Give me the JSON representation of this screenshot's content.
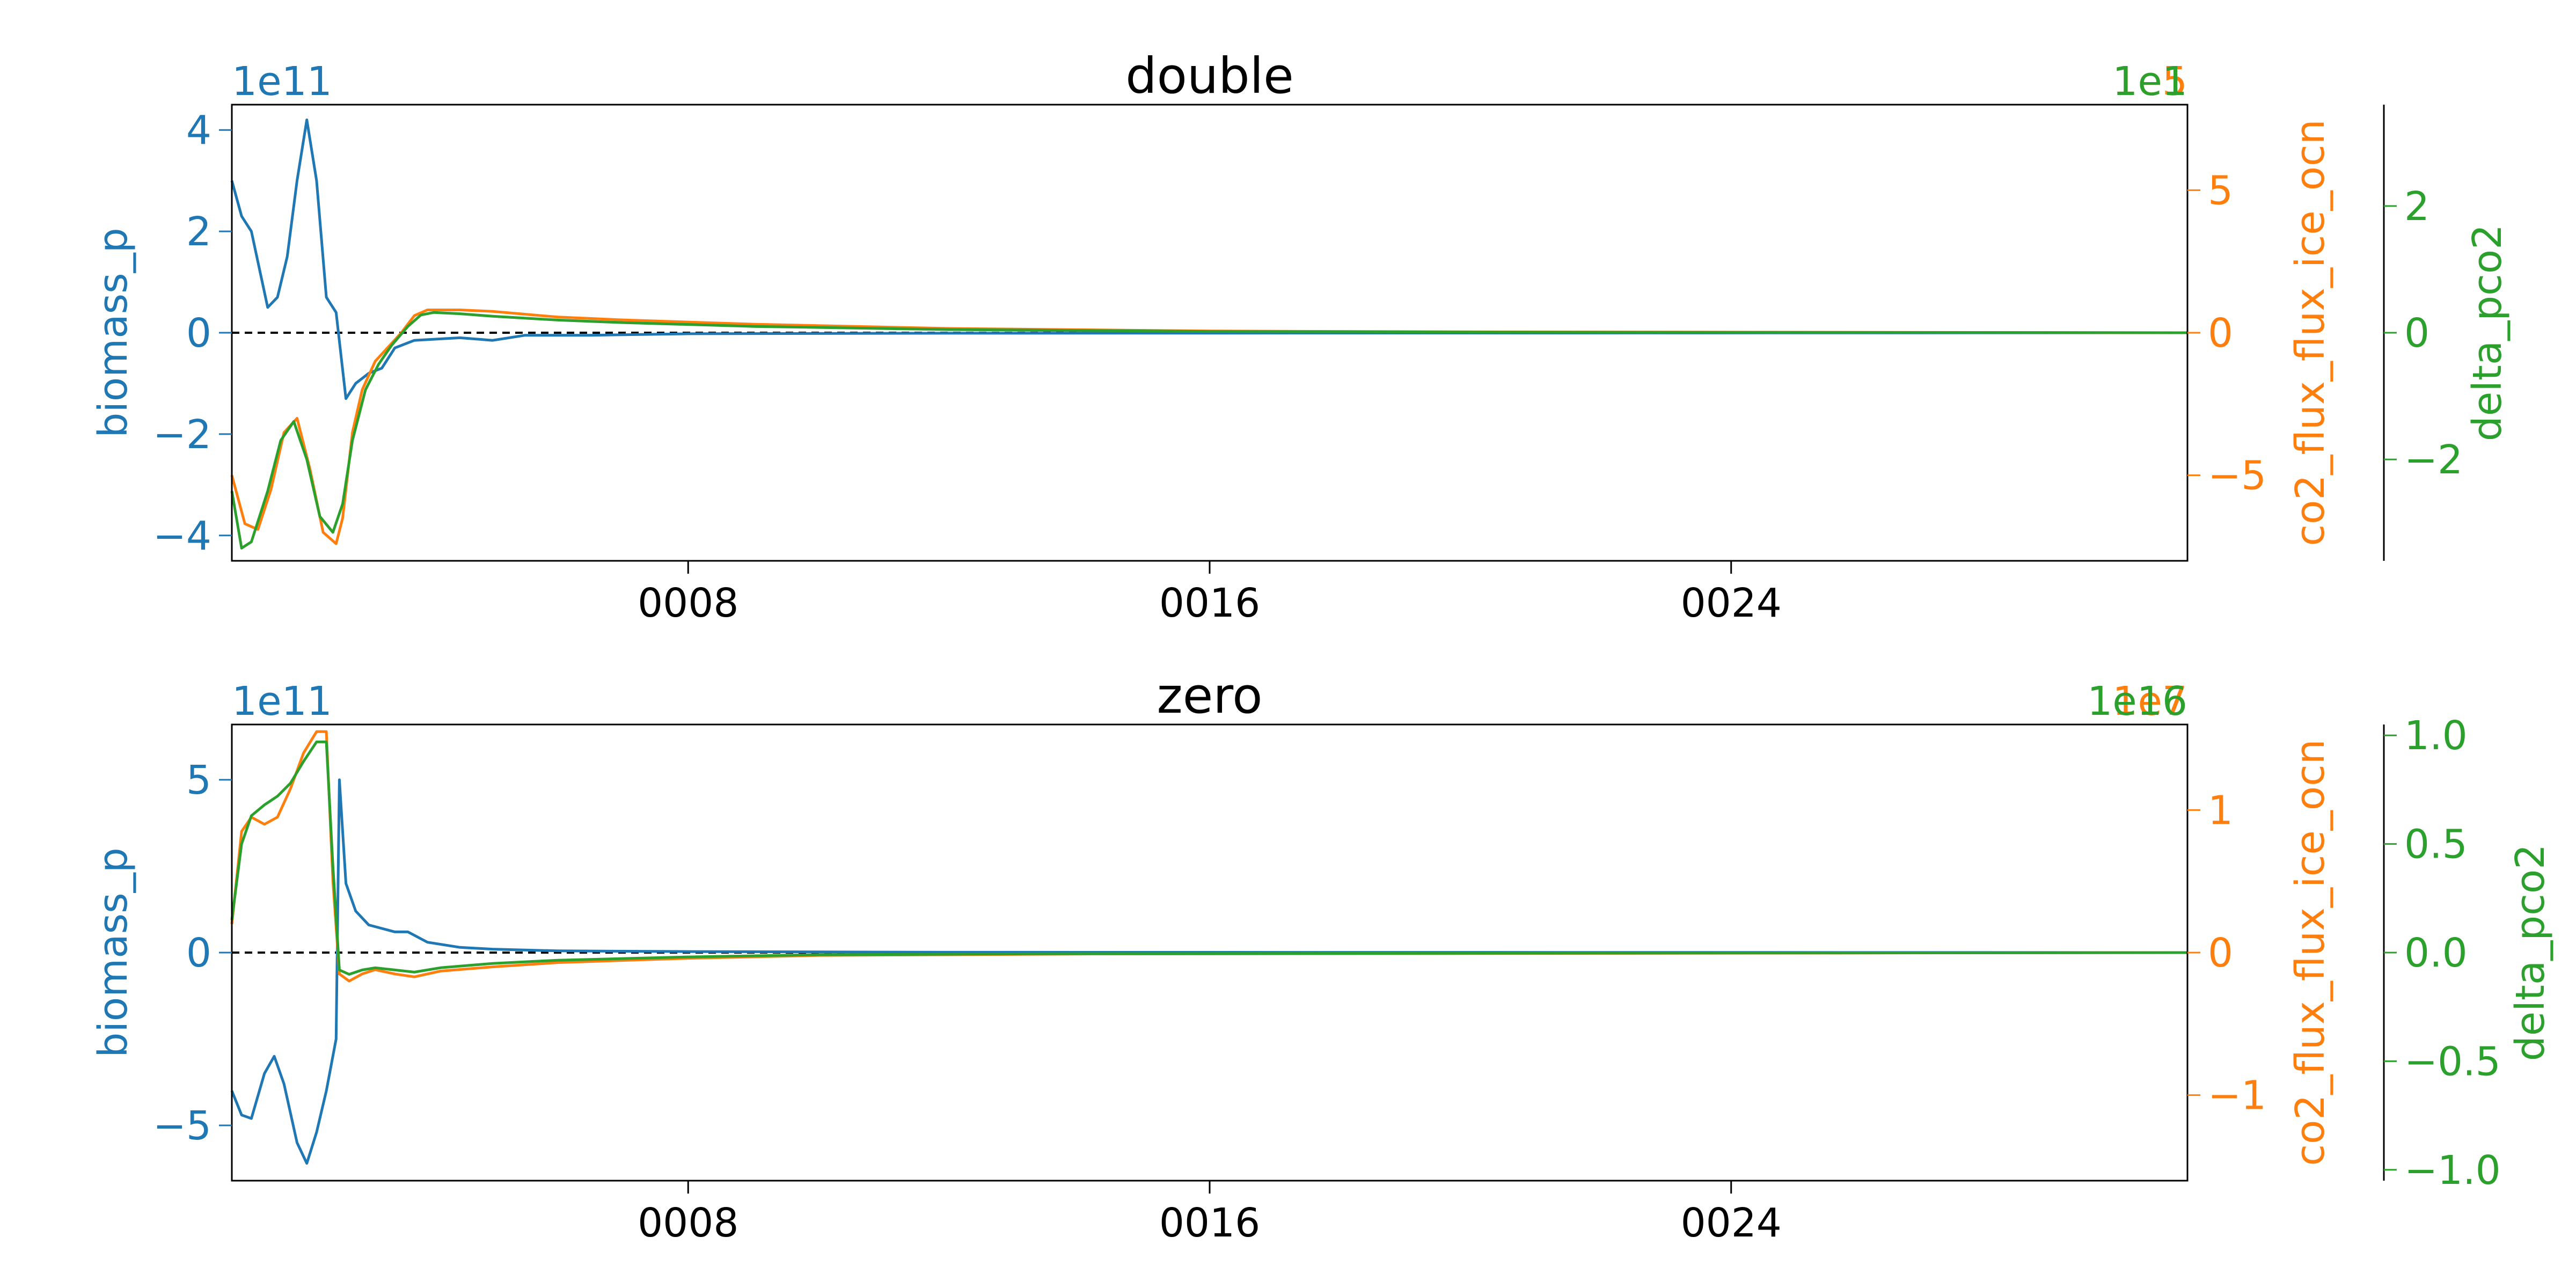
{
  "chart_data": [
    {
      "type": "line",
      "title": "double",
      "xlabel": "",
      "x_tick_labels": [
        "0008",
        "0016",
        "0024"
      ],
      "x_ticks": [
        8,
        16,
        24
      ],
      "xlim": [
        1,
        31
      ],
      "zero_line": true,
      "axes": {
        "left": {
          "label": "biomass_p",
          "offset_text": "1e11",
          "color": "#1f77b4",
          "ylim": [
            -4.5,
            4.5
          ],
          "ticks": [
            -4,
            -2,
            0,
            2,
            4
          ],
          "tick_labels": [
            "−4",
            "−2",
            "0",
            "2",
            "4"
          ]
        },
        "right": {
          "label": "co2_flux_flux_ice_ocn",
          "offset_text": "1e5",
          "color": "#ff7f0e",
          "ylim": [
            -8,
            8
          ],
          "ticks": [
            -5,
            0,
            5
          ],
          "tick_labels": [
            "−5",
            "0",
            "5"
          ]
        },
        "right2": {
          "label": "delta_pco2",
          "offset_text": "1e1",
          "color": "#2ca02c",
          "ylim": [
            -3.6,
            3.6
          ],
          "ticks": [
            -2,
            0,
            2
          ],
          "tick_labels": [
            "−2",
            "0",
            "2"
          ]
        }
      },
      "series": [
        {
          "axis": "left",
          "color": "#1f77b4",
          "points": [
            [
              1,
              3.0
            ],
            [
              1.15,
              2.3
            ],
            [
              1.3,
              2.0
            ],
            [
              1.55,
              0.5
            ],
            [
              1.7,
              0.7
            ],
            [
              1.85,
              1.5
            ],
            [
              2.0,
              3.0
            ],
            [
              2.15,
              4.2
            ],
            [
              2.3,
              3.0
            ],
            [
              2.45,
              0.7
            ],
            [
              2.6,
              0.4
            ],
            [
              2.75,
              -1.3
            ],
            [
              2.9,
              -1.0
            ],
            [
              3.1,
              -0.8
            ],
            [
              3.3,
              -0.7
            ],
            [
              3.5,
              -0.3
            ],
            [
              3.8,
              -0.15
            ],
            [
              4.5,
              -0.1
            ],
            [
              5.0,
              -0.15
            ],
            [
              5.5,
              -0.05
            ],
            [
              6.5,
              -0.05
            ],
            [
              8.0,
              -0.02
            ],
            [
              12.0,
              -0.01
            ],
            [
              31.0,
              0.0
            ]
          ]
        },
        {
          "axis": "right",
          "color": "#ff7f0e",
          "points": [
            [
              1,
              -5.0
            ],
            [
              1.2,
              -6.7
            ],
            [
              1.4,
              -6.9
            ],
            [
              1.6,
              -5.5
            ],
            [
              1.8,
              -3.5
            ],
            [
              2.0,
              -3.0
            ],
            [
              2.2,
              -4.8
            ],
            [
              2.4,
              -7.0
            ],
            [
              2.6,
              -7.4
            ],
            [
              2.7,
              -6.5
            ],
            [
              2.85,
              -3.5
            ],
            [
              3.0,
              -2.0
            ],
            [
              3.2,
              -1.0
            ],
            [
              3.4,
              -0.5
            ],
            [
              3.6,
              0.0
            ],
            [
              3.8,
              0.6
            ],
            [
              4.0,
              0.8
            ],
            [
              4.5,
              0.8
            ],
            [
              5.0,
              0.75
            ],
            [
              6.0,
              0.55
            ],
            [
              7.0,
              0.45
            ],
            [
              9.0,
              0.3
            ],
            [
              12.0,
              0.15
            ],
            [
              16.0,
              0.06
            ],
            [
              20.0,
              0.03
            ],
            [
              31.0,
              0.0
            ]
          ]
        },
        {
          "axis": "right2",
          "color": "#2ca02c",
          "points": [
            [
              1,
              -2.5
            ],
            [
              1.15,
              -3.4
            ],
            [
              1.3,
              -3.3
            ],
            [
              1.55,
              -2.5
            ],
            [
              1.75,
              -1.7
            ],
            [
              1.95,
              -1.4
            ],
            [
              2.15,
              -2.0
            ],
            [
              2.35,
              -2.9
            ],
            [
              2.55,
              -3.15
            ],
            [
              2.7,
              -2.7
            ],
            [
              2.85,
              -1.7
            ],
            [
              3.05,
              -0.9
            ],
            [
              3.25,
              -0.5
            ],
            [
              3.45,
              -0.2
            ],
            [
              3.7,
              0.1
            ],
            [
              3.9,
              0.28
            ],
            [
              4.1,
              0.32
            ],
            [
              4.5,
              0.3
            ],
            [
              5.0,
              0.26
            ],
            [
              6.0,
              0.2
            ],
            [
              7.0,
              0.16
            ],
            [
              9.0,
              0.1
            ],
            [
              12.0,
              0.05
            ],
            [
              16.0,
              0.02
            ],
            [
              20.0,
              0.01
            ],
            [
              31.0,
              0.0
            ]
          ]
        }
      ]
    },
    {
      "type": "line",
      "title": "zero",
      "xlabel": "",
      "x_tick_labels": [
        "0008",
        "0016",
        "0024"
      ],
      "x_ticks": [
        8,
        16,
        24
      ],
      "xlim": [
        1,
        31
      ],
      "zero_line": true,
      "axes": {
        "left": {
          "label": "biomass_p",
          "offset_text": "1e11",
          "color": "#1f77b4",
          "ylim": [
            -6.6,
            6.6
          ],
          "ticks": [
            -5,
            0,
            5
          ],
          "tick_labels": [
            "−5",
            "0",
            "5"
          ]
        },
        "right": {
          "label": "co2_flux_flux_ice_ocn",
          "offset_text": "1e7",
          "color": "#ff7f0e",
          "ylim": [
            -1.6,
            1.6
          ],
          "ticks": [
            -1,
            0,
            1
          ],
          "tick_labels": [
            "−1",
            "0",
            "1"
          ]
        },
        "right2": {
          "label": "delta_pco2",
          "offset_text": "1e16",
          "color": "#2ca02c",
          "ylim": [
            -1.05,
            1.05
          ],
          "ticks": [
            -1.0,
            -0.5,
            0.0,
            0.5,
            1.0
          ],
          "tick_labels": [
            "−1.0",
            "−0.5",
            "0.0",
            "0.5",
            "1.0"
          ]
        }
      },
      "series": [
        {
          "axis": "left",
          "color": "#1f77b4",
          "points": [
            [
              1,
              -4.0
            ],
            [
              1.15,
              -4.7
            ],
            [
              1.3,
              -4.8
            ],
            [
              1.5,
              -3.5
            ],
            [
              1.65,
              -3.0
            ],
            [
              1.8,
              -3.8
            ],
            [
              2.0,
              -5.5
            ],
            [
              2.15,
              -6.1
            ],
            [
              2.3,
              -5.2
            ],
            [
              2.45,
              -4.0
            ],
            [
              2.6,
              -2.5
            ],
            [
              2.65,
              5.0
            ],
            [
              2.75,
              2.0
            ],
            [
              2.9,
              1.2
            ],
            [
              3.1,
              0.8
            ],
            [
              3.5,
              0.6
            ],
            [
              3.7,
              0.6
            ],
            [
              4.0,
              0.3
            ],
            [
              4.5,
              0.15
            ],
            [
              5.0,
              0.1
            ],
            [
              6.0,
              0.05
            ],
            [
              8.0,
              0.03
            ],
            [
              12.0,
              0.01
            ],
            [
              31.0,
              0.0
            ]
          ]
        },
        {
          "axis": "right",
          "color": "#ff7f0e",
          "points": [
            [
              1,
              0.2
            ],
            [
              1.15,
              0.85
            ],
            [
              1.3,
              0.95
            ],
            [
              1.5,
              0.9
            ],
            [
              1.7,
              0.95
            ],
            [
              1.9,
              1.15
            ],
            [
              2.1,
              1.4
            ],
            [
              2.3,
              1.55
            ],
            [
              2.45,
              1.55
            ],
            [
              2.55,
              0.5
            ],
            [
              2.65,
              -0.15
            ],
            [
              2.8,
              -0.2
            ],
            [
              3.0,
              -0.15
            ],
            [
              3.2,
              -0.12
            ],
            [
              3.5,
              -0.15
            ],
            [
              3.8,
              -0.17
            ],
            [
              4.2,
              -0.13
            ],
            [
              5.0,
              -0.1
            ],
            [
              6.0,
              -0.07
            ],
            [
              8.0,
              -0.04
            ],
            [
              10.0,
              -0.02
            ],
            [
              14.0,
              -0.01
            ],
            [
              31.0,
              0.0
            ]
          ]
        },
        {
          "axis": "right2",
          "color": "#2ca02c",
          "points": [
            [
              1,
              0.15
            ],
            [
              1.15,
              0.5
            ],
            [
              1.3,
              0.63
            ],
            [
              1.5,
              0.68
            ],
            [
              1.7,
              0.72
            ],
            [
              1.9,
              0.78
            ],
            [
              2.1,
              0.88
            ],
            [
              2.3,
              0.97
            ],
            [
              2.45,
              0.97
            ],
            [
              2.55,
              0.4
            ],
            [
              2.65,
              -0.08
            ],
            [
              2.8,
              -0.1
            ],
            [
              3.0,
              -0.08
            ],
            [
              3.2,
              -0.07
            ],
            [
              3.5,
              -0.08
            ],
            [
              3.8,
              -0.09
            ],
            [
              4.2,
              -0.07
            ],
            [
              5.0,
              -0.05
            ],
            [
              6.0,
              -0.035
            ],
            [
              8.0,
              -0.02
            ],
            [
              10.0,
              -0.01
            ],
            [
              14.0,
              -0.005
            ],
            [
              31.0,
              0.0
            ]
          ]
        }
      ]
    }
  ]
}
